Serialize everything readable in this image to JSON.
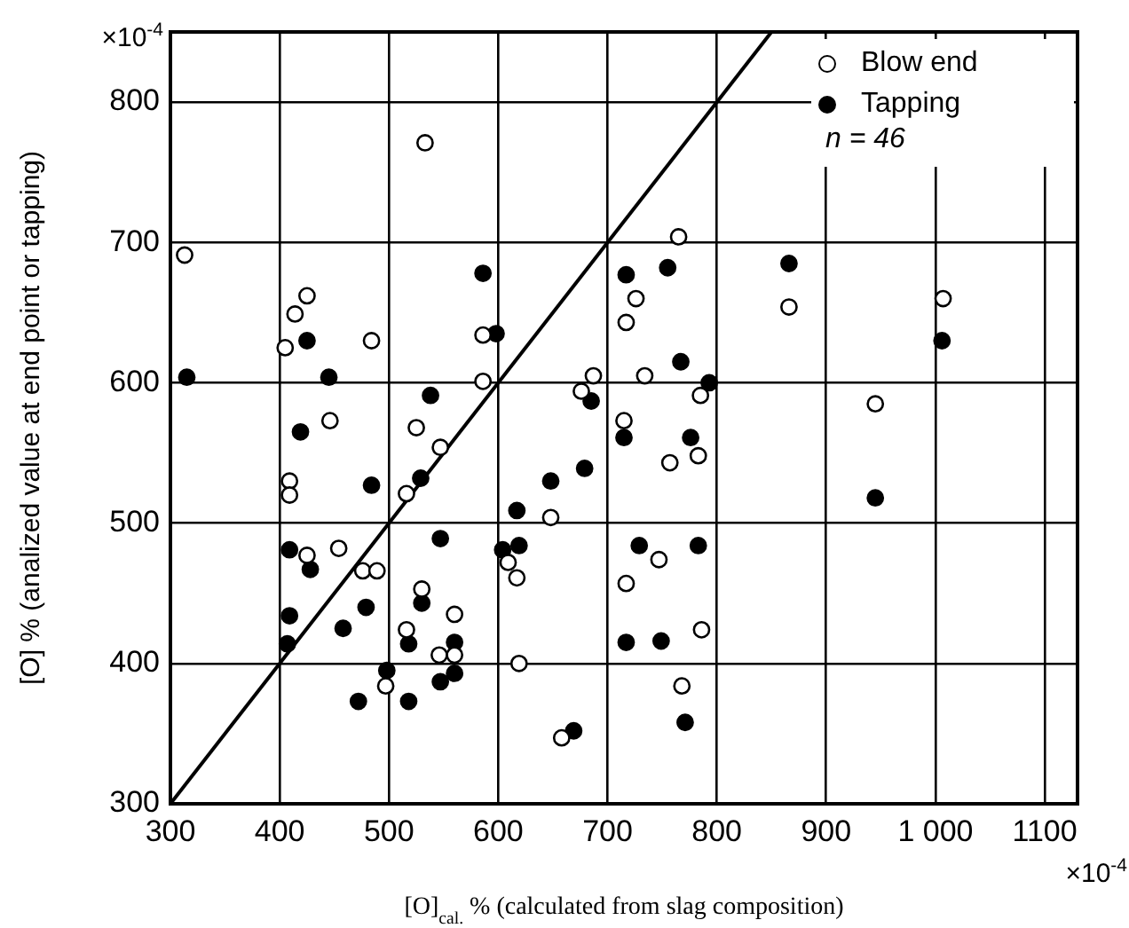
{
  "chart_data": {
    "type": "scatter",
    "xlabel": "[O]$_{cal.}$ % (calculated from slag composition)",
    "ylabel": "[O] % (analized value at end point or tapping)",
    "xlim": [
      300,
      1130
    ],
    "ylim": [
      300,
      850
    ],
    "xticks": [
      300,
      400,
      500,
      600,
      700,
      800,
      900,
      {
        "value": 1000,
        "label": "1 000"
      },
      1100
    ],
    "yticks": [
      300,
      400,
      500,
      600,
      700,
      800
    ],
    "grid": true,
    "legend": "top right",
    "marker": "circle",
    "annotations": [
      "×10$^{-4}$",
      "×10$^{-4}$",
      "n = 46"
    ],
    "series": [
      {
        "name": "Blow end",
        "color": "#ffffff",
        "x": [
          313,
          533,
          414,
          425,
          405,
          484,
          586,
          586,
          446,
          525,
          547,
          409,
          409,
          425,
          454,
          476,
          489,
          516,
          530,
          560,
          516,
          546,
          560,
          497,
          619,
          609,
          617,
          648,
          658,
          757,
          783,
          747,
          717,
          786,
          768,
          765,
          726,
          717,
          866,
          1007,
          687,
          734,
          676,
          785,
          715,
          945
        ],
        "values": [
          691,
          771,
          649,
          662,
          625,
          630,
          634,
          601,
          573,
          568,
          554,
          530,
          520,
          477,
          482,
          466,
          466,
          521,
          453,
          435,
          424,
          406,
          406,
          384,
          400,
          472,
          461,
          504,
          347,
          543,
          548,
          474,
          457,
          424,
          384,
          704,
          660,
          643,
          654,
          660,
          605,
          605,
          594,
          591,
          573,
          585
        ]
      },
      {
        "name": "Tapping",
        "color": "#000000",
        "x": [
          315,
          425,
          445,
          586,
          598,
          538,
          419,
          484,
          529,
          409,
          428,
          409,
          407,
          458,
          479,
          547,
          530,
          518,
          498,
          472,
          518,
          547,
          560,
          560,
          648,
          604,
          619,
          617,
          679,
          715,
          776,
          945,
          729,
          783,
          717,
          749,
          771,
          669,
          755,
          717,
          866,
          1006,
          767,
          685,
          793
        ],
        "values": [
          604,
          630,
          604,
          678,
          635,
          591,
          565,
          527,
          532,
          481,
          467,
          434,
          414,
          425,
          440,
          489,
          443,
          414,
          395,
          373,
          373,
          387,
          393,
          415,
          530,
          481,
          484,
          509,
          539,
          561,
          561,
          518,
          484,
          484,
          415,
          416,
          358,
          352,
          682,
          677,
          685,
          630,
          615,
          587,
          600
        ]
      },
      {
        "type": "line",
        "color": "#000000",
        "marker": "none",
        "x": [
          300,
          850
        ],
        "values": [
          300,
          850
        ]
      }
    ]
  }
}
